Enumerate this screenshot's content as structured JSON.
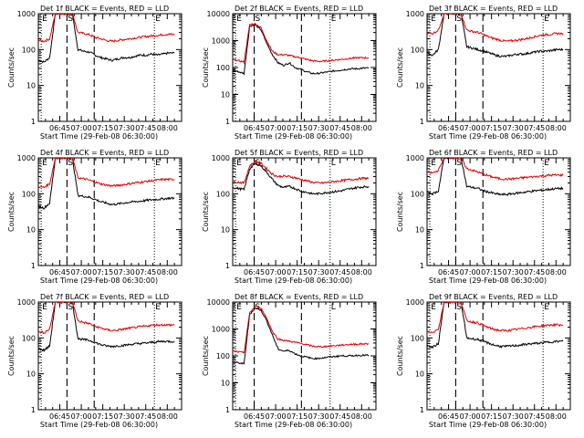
{
  "chart_data": [
    {
      "type": "line",
      "title": "Det 1f BLACK = Events, RED = LLD",
      "xlabel": "Start Time (29-Feb-08 06:30:00)",
      "ylabel": "Counts/sec",
      "ylog": true,
      "ylim": [
        1,
        1000
      ],
      "x_ticks": [
        "06:45",
        "07:00",
        "07:15",
        "07:30",
        "07:45",
        "08:00"
      ],
      "y_ticks": [
        "1",
        "10",
        "100",
        "1000"
      ],
      "profile": "S",
      "markers": [
        "E",
        "S",
        "E"
      ],
      "series": [
        {
          "values": [
            50,
            45,
            60,
            1000,
            1000,
            1000,
            1000,
            100,
            90,
            85,
            70,
            60,
            55,
            50,
            55,
            60,
            60,
            65,
            70,
            70,
            75,
            70,
            75,
            80,
            80
          ]
        },
        {
          "values": [
            180,
            170,
            200,
            1000,
            1000,
            1000,
            1000,
            300,
            280,
            260,
            220,
            200,
            180,
            170,
            180,
            190,
            200,
            210,
            220,
            230,
            240,
            250,
            260,
            270,
            260
          ]
        }
      ]
    },
    {
      "type": "line",
      "title": "Det 2f BLACK = Events, RED = LLD",
      "xlabel": "Start Time (29-Feb-08 06:30:00)",
      "ylabel": "Counts/sec",
      "ylog": true,
      "ylim": [
        1,
        10000
      ],
      "x_ticks": [
        "06:45",
        "07:00",
        "07:15",
        "07:30",
        "07:45",
        "08:00"
      ],
      "y_ticks": [
        "1",
        "10",
        "100",
        "1000",
        "10000"
      ],
      "profile": "F",
      "markers": [
        "E",
        "S",
        "E"
      ],
      "series": [
        {
          "values": [
            80,
            70,
            60,
            3500,
            3800,
            2500,
            800,
            300,
            150,
            120,
            150,
            100,
            85,
            70,
            60,
            60,
            65,
            70,
            75,
            80,
            85,
            90,
            90,
            95,
            95
          ]
        },
        {
          "values": [
            200,
            180,
            160,
            4000,
            4200,
            3000,
            1000,
            400,
            300,
            300,
            280,
            250,
            230,
            200,
            180,
            170,
            170,
            180,
            190,
            200,
            210,
            220,
            230,
            230,
            230
          ]
        }
      ]
    },
    {
      "type": "line",
      "title": "Det 3f BLACK = Events, RED = LLD",
      "xlabel": "Start Time (29-Feb-08 06:30:00)",
      "ylabel": "Counts/sec",
      "ylog": true,
      "ylim": [
        1,
        1000
      ],
      "x_ticks": [
        "06:45",
        "07:00",
        "07:15",
        "07:30",
        "07:45",
        "08:00"
      ],
      "y_ticks": [
        "1",
        "10",
        "100",
        "1000"
      ],
      "profile": "S",
      "markers": [
        "E",
        "S",
        "E"
      ],
      "series": [
        {
          "values": [
            80,
            70,
            100,
            1000,
            1000,
            1000,
            1000,
            120,
            110,
            100,
            90,
            80,
            70,
            65,
            65,
            70,
            75,
            75,
            80,
            85,
            90,
            90,
            95,
            100,
            100
          ]
        },
        {
          "values": [
            300,
            280,
            350,
            1000,
            1000,
            1000,
            1000,
            350,
            320,
            300,
            260,
            220,
            200,
            180,
            170,
            175,
            185,
            195,
            210,
            230,
            250,
            260,
            270,
            280,
            280
          ]
        }
      ]
    },
    {
      "type": "line",
      "title": "Det 4f BLACK = Events, RED = LLD",
      "xlabel": "Start Time (29-Feb-08 06:30:00)",
      "ylabel": "Counts/sec",
      "ylog": true,
      "ylim": [
        1,
        1000
      ],
      "x_ticks": [
        "06:45",
        "07:00",
        "07:15",
        "07:30",
        "07:45",
        "08:00"
      ],
      "y_ticks": [
        "1",
        "10",
        "100",
        "1000"
      ],
      "profile": "S",
      "markers": [
        "E",
        "S",
        "E"
      ],
      "series": [
        {
          "values": [
            45,
            40,
            55,
            1000,
            1000,
            1000,
            1000,
            90,
            85,
            80,
            70,
            60,
            55,
            50,
            52,
            55,
            58,
            60,
            62,
            65,
            68,
            70,
            72,
            75,
            75
          ]
        },
        {
          "values": [
            160,
            150,
            190,
            1000,
            1000,
            1000,
            1000,
            280,
            260,
            240,
            210,
            190,
            175,
            165,
            170,
            180,
            190,
            200,
            210,
            220,
            230,
            240,
            250,
            250,
            250
          ]
        }
      ]
    },
    {
      "type": "line",
      "title": "Det 5f BLACK = Events, RED = LLD",
      "xlabel": "Start Time (29-Feb-08 06:30:00)",
      "ylabel": "Counts/sec",
      "ylog": true,
      "ylim": [
        1,
        1000
      ],
      "x_ticks": [
        "06:45",
        "07:00",
        "07:15",
        "07:30",
        "07:45",
        "08:00"
      ],
      "y_ticks": [
        "1",
        "10",
        "100",
        "1000"
      ],
      "profile": "F",
      "markers": [
        "E",
        "S",
        "L"
      ],
      "series": [
        {
          "values": [
            150,
            140,
            130,
            500,
            700,
            600,
            400,
            250,
            170,
            150,
            160,
            140,
            120,
            110,
            100,
            100,
            105,
            110,
            115,
            120,
            130,
            140,
            150,
            155,
            160
          ]
        },
        {
          "values": [
            220,
            210,
            200,
            600,
            800,
            700,
            500,
            350,
            300,
            310,
            300,
            280,
            250,
            230,
            210,
            200,
            200,
            210,
            220,
            230,
            240,
            250,
            260,
            270,
            270
          ]
        }
      ]
    },
    {
      "type": "line",
      "title": "Det 6f BLACK = Events, RED = LLD",
      "xlabel": "Start Time (29-Feb-08 06:30:00)",
      "ylabel": "Counts/sec",
      "ylog": true,
      "ylim": [
        1,
        1000
      ],
      "x_ticks": [
        "06:45",
        "07:00",
        "07:15",
        "07:30",
        "07:45",
        "08:00"
      ],
      "y_ticks": [
        "1",
        "10",
        "100",
        "1000"
      ],
      "profile": "S",
      "markers": [
        "E",
        "S",
        "E"
      ],
      "series": [
        {
          "values": [
            110,
            100,
            120,
            1000,
            1000,
            1000,
            1000,
            160,
            150,
            140,
            120,
            110,
            100,
            95,
            95,
            100,
            105,
            110,
            115,
            120,
            125,
            130,
            135,
            140,
            140
          ]
        },
        {
          "values": [
            400,
            380,
            450,
            1000,
            1000,
            1000,
            1000,
            500,
            450,
            400,
            350,
            310,
            280,
            260,
            255,
            260,
            270,
            280,
            290,
            300,
            310,
            320,
            330,
            330,
            330
          ]
        }
      ]
    },
    {
      "type": "line",
      "title": "Det 7f BLACK = Events, RED = LLD",
      "xlabel": "Start Time (29-Feb-08 06:30:00)",
      "ylabel": "Counts/sec",
      "ylog": true,
      "ylim": [
        1,
        1000
      ],
      "x_ticks": [
        "06:45",
        "07:00",
        "07:15",
        "07:30",
        "07:45",
        "08:00"
      ],
      "y_ticks": [
        "1",
        "10",
        "100",
        "1000"
      ],
      "profile": "S",
      "markers": [
        "E",
        "S",
        "E"
      ],
      "series": [
        {
          "values": [
            50,
            45,
            60,
            1000,
            1000,
            1000,
            1000,
            95,
            90,
            85,
            75,
            65,
            60,
            58,
            60,
            62,
            65,
            68,
            70,
            72,
            75,
            78,
            80,
            80,
            80
          ]
        },
        {
          "values": [
            150,
            140,
            180,
            1000,
            1000,
            1000,
            1000,
            300,
            270,
            250,
            210,
            190,
            170,
            160,
            165,
            175,
            185,
            195,
            205,
            215,
            225,
            230,
            230,
            230,
            230
          ]
        }
      ]
    },
    {
      "type": "line",
      "title": "Det 8f BLACK = Events, RED = LLD",
      "xlabel": "Start Time (29-Feb-08 06:30:00)",
      "ylabel": "Counts/sec",
      "ylog": true,
      "ylim": [
        1,
        10000
      ],
      "x_ticks": [
        "06:45",
        "07:00",
        "07:15",
        "07:30",
        "07:45",
        "08:00"
      ],
      "y_ticks": [
        "1",
        "10",
        "100",
        "1000",
        "10000"
      ],
      "profile": "F",
      "markers": [
        "E",
        "S",
        "L"
      ],
      "series": [
        {
          "values": [
            60,
            55,
            50,
            3500,
            6000,
            5000,
            2000,
            600,
            180,
            150,
            160,
            120,
            100,
            90,
            80,
            80,
            85,
            90,
            95,
            100,
            100,
            100,
            105,
            105,
            105
          ]
        },
        {
          "values": [
            150,
            140,
            130,
            4000,
            7000,
            6000,
            2500,
            800,
            420,
            380,
            350,
            320,
            290,
            260,
            230,
            220,
            220,
            230,
            240,
            250,
            260,
            270,
            270,
            280,
            280
          ]
        }
      ]
    },
    {
      "type": "line",
      "title": "Det 9f BLACK = Events, RED = LLD",
      "xlabel": "Start Time (29-Feb-08 06:30:00)",
      "ylabel": "Counts/sec",
      "ylog": true,
      "ylim": [
        1,
        1000
      ],
      "x_ticks": [
        "06:45",
        "07:00",
        "07:15",
        "07:30",
        "07:45",
        "08:00"
      ],
      "y_ticks": [
        "1",
        "10",
        "100",
        "1000"
      ],
      "profile": "S",
      "markers": [
        "E",
        "S",
        "E"
      ],
      "series": [
        {
          "values": [
            60,
            55,
            70,
            1000,
            1000,
            1000,
            1000,
            100,
            95,
            90,
            80,
            70,
            62,
            58,
            58,
            60,
            62,
            65,
            68,
            70,
            72,
            75,
            78,
            80,
            80
          ]
        },
        {
          "values": [
            150,
            140,
            180,
            1000,
            1000,
            1000,
            1000,
            300,
            280,
            260,
            220,
            190,
            170,
            160,
            160,
            165,
            175,
            185,
            195,
            205,
            215,
            225,
            230,
            230,
            230
          ]
        }
      ]
    }
  ]
}
